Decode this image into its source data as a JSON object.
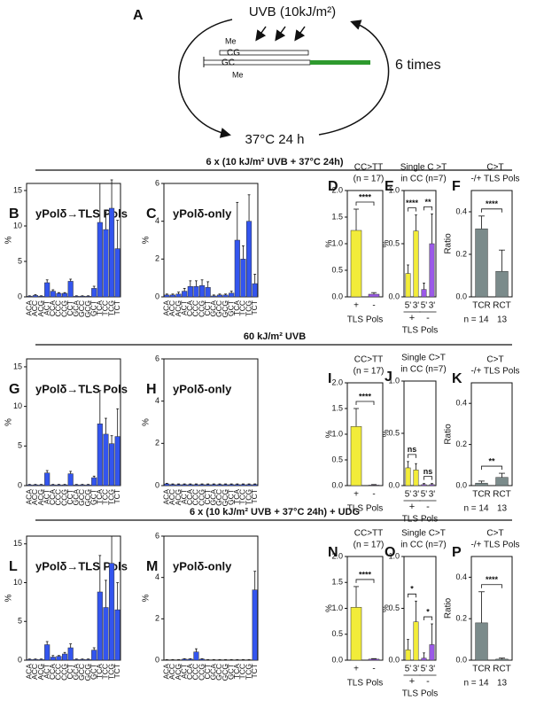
{
  "diagram": {
    "label": "A",
    "uvb": "UVB (10kJ/m²)",
    "methyl_top": "Me",
    "top_strand": "CG",
    "bottom_strand": "GC",
    "methyl_bottom": "Me",
    "repeat": "6 times",
    "incubation": "37°C 24 h"
  },
  "sections": [
    "6 x (10 kJ/m² UVB + 37°C 24h)",
    "60 kJ/m² UVB",
    "6 x (10 kJ/m² UVB + 37°C 24h) + UDG"
  ],
  "chart_data": [
    {
      "type": "bar",
      "panel": "B",
      "title": "yPolδ→TLS Pols",
      "ylabel": "%",
      "categories": [
        "ACA",
        "ACC",
        "ACG",
        "ACT",
        "CCA",
        "CCC",
        "CCG",
        "CCT",
        "GCA",
        "GCC",
        "GCG",
        "GCT",
        "TCA",
        "TCC",
        "TCG",
        "TCT"
      ],
      "values": [
        0.1,
        0.2,
        0.1,
        2.0,
        0.8,
        0.5,
        0.5,
        2.2,
        0.1,
        0.1,
        0.1,
        1.2,
        10.5,
        9.5,
        12.5,
        6.8
      ],
      "errors": [
        0.05,
        0.1,
        0.05,
        0.4,
        0.2,
        0.1,
        0.1,
        0.3,
        0.05,
        0.05,
        0.05,
        0.3,
        5.5,
        2.5,
        4,
        4
      ],
      "color": "#3355ee",
      "ylim": [
        0,
        16
      ],
      "yticks": [
        0,
        5,
        10,
        15
      ]
    },
    {
      "type": "bar",
      "panel": "C",
      "title": "yPolδ-only",
      "ylabel": "%",
      "categories": [
        "ACA",
        "ACC",
        "ACG",
        "ACT",
        "CCA",
        "CCC",
        "CCG",
        "CCT",
        "GCA",
        "GCC",
        "GCG",
        "GCT",
        "TCA",
        "TCC",
        "TCG",
        "TCT"
      ],
      "values": [
        0.1,
        0.1,
        0.15,
        0.3,
        0.55,
        0.55,
        0.6,
        0.5,
        0.05,
        0.1,
        0.1,
        0.2,
        3.0,
        2.0,
        4.0,
        0.7
      ],
      "errors": [
        0.05,
        0.05,
        0.1,
        0.15,
        0.3,
        0.3,
        0.3,
        0.3,
        0.05,
        0.05,
        0.05,
        0.1,
        2.0,
        0.7,
        1.4,
        0.5
      ],
      "color": "#3355ee",
      "ylim": [
        0,
        6
      ],
      "yticks": [
        0,
        2,
        4,
        6
      ]
    },
    {
      "type": "bar",
      "panel": "D",
      "title": "CC>TT",
      "subtitle": "(n = 17)",
      "ylabel": "%",
      "categories": [
        "+",
        "-"
      ],
      "group_title": "TLS Pols",
      "values": [
        1.25,
        0.05
      ],
      "errors": [
        0.4,
        0.03
      ],
      "colors": [
        "#f2ec3a",
        "#9b59e8"
      ],
      "ylim": [
        0,
        2
      ],
      "yticks": [
        {
          "value": 0,
          "label": "0.0"
        },
        0.5,
        {
          "value": 1,
          "label": "1.0"
        },
        1.5,
        {
          "value": 2,
          "label": "2.0"
        }
      ],
      "annotations": [
        "****"
      ]
    },
    {
      "type": "bar",
      "panel": "E",
      "title": "Single C >T",
      "subtitle": "in CC (n=7)",
      "ylabel": "%",
      "categories": [
        "5'",
        "3'",
        "5'",
        "3'"
      ],
      "groups": [
        "+",
        "-"
      ],
      "group_title": "TLS Pols",
      "values": [
        0.22,
        0.62,
        0.07,
        0.5
      ],
      "errors": [
        0.08,
        0.15,
        0.06,
        0.28
      ],
      "colors": [
        "#f2ec3a",
        "#f2ec3a",
        "#9b59e8",
        "#9b59e8"
      ],
      "ylim": [
        0,
        1
      ],
      "yticks": [
        {
          "value": 0,
          "label": "0.0"
        },
        0.5,
        {
          "value": 1,
          "label": "1.0"
        }
      ],
      "annotations": [
        "****",
        "**"
      ]
    },
    {
      "type": "bar",
      "panel": "F",
      "title": "C>T",
      "subtitle": "-/+ TLS Pols",
      "ylabel": "Ratio",
      "categories": [
        "TCR",
        "RCT"
      ],
      "n_labels": [
        "n = 14",
        "13"
      ],
      "values": [
        0.32,
        0.12
      ],
      "errors": [
        0.06,
        0.1
      ],
      "color": "#7b8b8b",
      "ylim": [
        0,
        0.5
      ],
      "yticks": [
        {
          "value": 0,
          "label": "0.0"
        },
        0.2,
        0.4
      ],
      "annotations": [
        "****"
      ]
    },
    {
      "type": "bar",
      "panel": "G",
      "title": "yPolδ→TLS Pols",
      "ylabel": "%",
      "categories": [
        "ACA",
        "ACC",
        "ACG",
        "ACT",
        "CCA",
        "CCC",
        "CCG",
        "CCT",
        "GCA",
        "GCC",
        "GCG",
        "GCT",
        "TCA",
        "TCC",
        "TCG",
        "TCT"
      ],
      "values": [
        0.1,
        0.1,
        0.1,
        1.6,
        0.1,
        0.1,
        0.1,
        1.5,
        0.1,
        0.1,
        0.1,
        1.0,
        7.8,
        6.5,
        5.3,
        6.2
      ],
      "errors": [
        0.05,
        0.05,
        0.05,
        0.3,
        0.05,
        0.05,
        0.05,
        0.3,
        0.05,
        0.05,
        0.05,
        0.2,
        4.2,
        2.0,
        1.0,
        3.5
      ],
      "color": "#3355ee",
      "ylim": [
        0,
        16
      ],
      "yticks": [
        0,
        5,
        10,
        15
      ]
    },
    {
      "type": "bar",
      "panel": "H",
      "title": "yPolδ-only",
      "ylabel": "%",
      "categories": [
        "ACA",
        "ACC",
        "ACG",
        "ACT",
        "CCA",
        "CCC",
        "CCG",
        "CCT",
        "GCA",
        "GCC",
        "GCG",
        "GCT",
        "TCA",
        "TCC",
        "TCG",
        "TCT"
      ],
      "values": [
        0.08,
        0.05,
        0.05,
        0.05,
        0.05,
        0.05,
        0.05,
        0.05,
        0.05,
        0.05,
        0.05,
        0.05,
        0.05,
        0.05,
        0.05,
        0.05
      ],
      "errors": [
        0.03,
        0.03,
        0.03,
        0.03,
        0.03,
        0.03,
        0.03,
        0.03,
        0.03,
        0.03,
        0.03,
        0.03,
        0.03,
        0.03,
        0.03,
        0.03
      ],
      "color": "#3355ee",
      "ylim": [
        0,
        6
      ],
      "yticks": [
        0,
        2,
        4,
        6
      ]
    },
    {
      "type": "bar",
      "panel": "I",
      "title": "CC>TT",
      "subtitle": "(n = 17)",
      "ylabel": "%",
      "categories": [
        "+",
        "-"
      ],
      "group_title": "TLS Pols",
      "values": [
        1.15,
        0.01
      ],
      "errors": [
        0.35,
        0.01
      ],
      "colors": [
        "#f2ec3a",
        "#9b59e8"
      ],
      "ylim": [
        0,
        2
      ],
      "yticks": [
        {
          "value": 0,
          "label": "0.0"
        },
        0.5,
        {
          "value": 1,
          "label": "1.0"
        },
        1.5,
        {
          "value": 2,
          "label": "2.0"
        }
      ],
      "annotations": [
        "****"
      ]
    },
    {
      "type": "bar",
      "panel": "J",
      "title": "Single C>T",
      "subtitle": "in CC (n=7)",
      "ylabel": "%",
      "categories": [
        "5'",
        "3'",
        "5'",
        "3'"
      ],
      "groups": [
        "+",
        "-"
      ],
      "group_title": "TLS Pols",
      "values": [
        0.17,
        0.15,
        0.01,
        0.01
      ],
      "errors": [
        0.06,
        0.06,
        0.01,
        0.01
      ],
      "colors": [
        "#f2ec3a",
        "#f2ec3a",
        "#9b59e8",
        "#9b59e8"
      ],
      "ylim": [
        0,
        1
      ],
      "yticks": [
        {
          "value": 0,
          "label": "0.0"
        },
        0.5,
        {
          "value": 1,
          "label": "1.0"
        }
      ],
      "annotations": [
        "ns",
        "ns"
      ]
    },
    {
      "type": "bar",
      "panel": "K",
      "title": "C>T",
      "subtitle": "-/+ TLS Pols",
      "ylabel": "Ratio",
      "categories": [
        "TCR",
        "RCT"
      ],
      "n_labels": [
        "n = 14",
        "13"
      ],
      "values": [
        0.012,
        0.04
      ],
      "errors": [
        0.01,
        0.02
      ],
      "color": "#7b8b8b",
      "ylim": [
        0,
        0.5
      ],
      "yticks": [
        {
          "value": 0,
          "label": "0.0"
        },
        0.2,
        0.4
      ],
      "annotations": [
        "**"
      ]
    },
    {
      "type": "bar",
      "panel": "L",
      "title": "yPolδ→TLS Pols",
      "ylabel": "%",
      "categories": [
        "ACA",
        "ACC",
        "ACG",
        "ACT",
        "CCA",
        "CCC",
        "CCG",
        "CCT",
        "GCA",
        "GCC",
        "GCG",
        "GCT",
        "TCA",
        "TCC",
        "TCG",
        "TCT"
      ],
      "values": [
        0.1,
        0.1,
        0.1,
        2.0,
        0.4,
        0.5,
        0.8,
        1.6,
        0.1,
        0.1,
        0.1,
        1.3,
        8.8,
        6.8,
        12.5,
        6.5
      ],
      "errors": [
        0.05,
        0.05,
        0.05,
        0.4,
        0.2,
        0.1,
        0.2,
        0.5,
        0.05,
        0.05,
        0.05,
        0.3,
        4.7,
        3.5,
        3.5,
        3.5
      ],
      "color": "#3355ee",
      "ylim": [
        0,
        16
      ],
      "yticks": [
        0,
        5,
        10,
        15
      ]
    },
    {
      "type": "bar",
      "panel": "M",
      "title": "yPolδ-only",
      "ylabel": "%",
      "categories": [
        "ACA",
        "ACC",
        "ACG",
        "ACT",
        "CCA",
        "CCC",
        "CCG",
        "CCT",
        "GCA",
        "GCC",
        "GCG",
        "GCT",
        "TCA",
        "TCC",
        "TCG",
        "TCT"
      ],
      "values": [
        0.02,
        0.02,
        0.02,
        0.05,
        0.05,
        0.4,
        0.05,
        0.02,
        0.02,
        0.02,
        0.02,
        0.02,
        0.02,
        0.02,
        0.02,
        3.4
      ],
      "errors": [
        0.01,
        0.01,
        0.01,
        0.02,
        0.02,
        0.15,
        0.02,
        0.01,
        0.01,
        0.01,
        0.01,
        0.01,
        0.01,
        0.01,
        0.01,
        0.9
      ],
      "color": "#3355ee",
      "ylim": [
        0,
        6
      ],
      "yticks": [
        0,
        2,
        4,
        6
      ]
    },
    {
      "type": "bar",
      "panel": "N",
      "title": "CC>TT",
      "subtitle": "(n = 17)",
      "ylabel": "%",
      "categories": [
        "+",
        "-"
      ],
      "group_title": "TLS Pols",
      "values": [
        1.02,
        0.02
      ],
      "errors": [
        0.4,
        0.01
      ],
      "colors": [
        "#f2ec3a",
        "#9b59e8"
      ],
      "ylim": [
        0,
        2
      ],
      "yticks": [
        {
          "value": 0,
          "label": "0.0"
        },
        0.5,
        {
          "value": 1,
          "label": "1.0"
        },
        1.5,
        {
          "value": 2,
          "label": "2.0"
        }
      ],
      "annotations": [
        "****"
      ]
    },
    {
      "type": "bar",
      "panel": "O",
      "title": "Single C>T",
      "subtitle": "in CC (n=7)",
      "ylabel": "%",
      "categories": [
        "5'",
        "3'",
        "5'",
        "3'"
      ],
      "groups": [
        "+",
        "-"
      ],
      "group_title": "TLS Pols",
      "values": [
        0.1,
        0.37,
        0.02,
        0.15
      ],
      "errors": [
        0.1,
        0.2,
        0.05,
        0.2
      ],
      "colors": [
        "#f2ec3a",
        "#f2ec3a",
        "#9b59e8",
        "#9b59e8"
      ],
      "ylim": [
        0,
        1
      ],
      "yticks": [
        {
          "value": 0,
          "label": "0.0"
        },
        0.5,
        {
          "value": 1,
          "label": "1.0"
        }
      ],
      "annotations": [
        "*",
        "*"
      ]
    },
    {
      "type": "bar",
      "panel": "P",
      "title": "C>T",
      "subtitle": "-/+ TLS Pols",
      "ylabel": "Ratio",
      "categories": [
        "TCR",
        "RCT"
      ],
      "n_labels": [
        "n = 14",
        "13"
      ],
      "values": [
        0.18,
        0.005
      ],
      "errors": [
        0.15,
        0.005
      ],
      "color": "#7b8b8b",
      "ylim": [
        0,
        0.5
      ],
      "yticks": [
        {
          "value": 0,
          "label": "0.0"
        },
        0.2,
        0.4
      ],
      "annotations": [
        "****"
      ]
    }
  ]
}
